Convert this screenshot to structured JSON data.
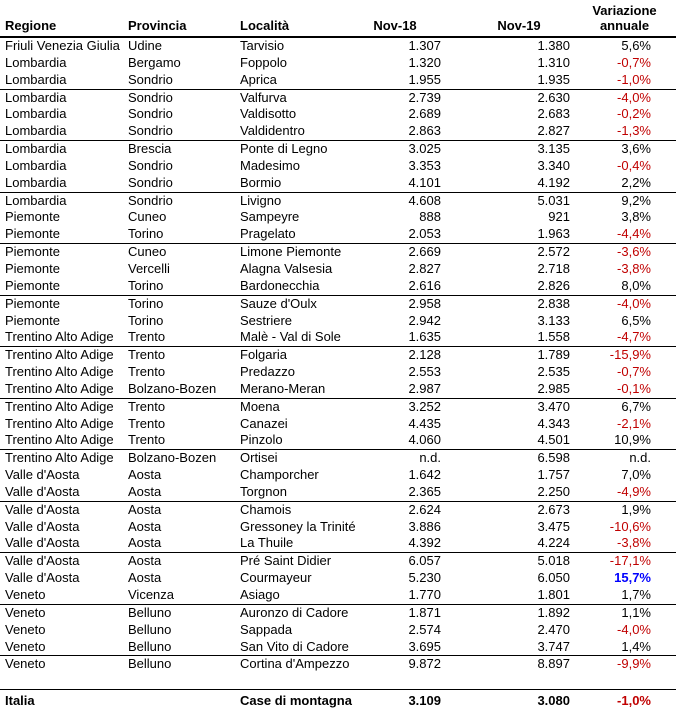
{
  "colors": {
    "negative_pct": "#C00000",
    "highlight_pct": "#0000FF",
    "text": "#000000",
    "border": "#000000"
  },
  "table": {
    "headers": {
      "regione": "Regione",
      "provincia": "Provincia",
      "localita": "Località",
      "nov18": "Nov-18",
      "nov19": "Nov-19",
      "variazione_line1": "Variazione",
      "variazione_line2": "annuale"
    },
    "rows": [
      {
        "regione": "Friuli Venezia Giulia",
        "provincia": "Udine",
        "localita": "Tarvisio",
        "nov18": "1.307",
        "nov19": "1.380",
        "variazione": "5,6%",
        "trend": "positive"
      },
      {
        "regione": "Lombardia",
        "provincia": "Bergamo",
        "localita": "Foppolo",
        "nov18": "1.320",
        "nov19": "1.310",
        "variazione": "-0,7%",
        "trend": "negative"
      },
      {
        "regione": "Lombardia",
        "provincia": "Sondrio",
        "localita": "Aprica",
        "nov18": "1.955",
        "nov19": "1.935",
        "variazione": "-1,0%",
        "trend": "negative"
      },
      {
        "regione": "Lombardia",
        "provincia": "Sondrio",
        "localita": "Valfurva",
        "nov18": "2.739",
        "nov19": "2.630",
        "variazione": "-4,0%",
        "trend": "negative"
      },
      {
        "regione": "Lombardia",
        "provincia": "Sondrio",
        "localita": "Valdisotto",
        "nov18": "2.689",
        "nov19": "2.683",
        "variazione": "-0,2%",
        "trend": "negative"
      },
      {
        "regione": "Lombardia",
        "provincia": "Sondrio",
        "localita": "Valdidentro",
        "nov18": "2.863",
        "nov19": "2.827",
        "variazione": "-1,3%",
        "trend": "negative"
      },
      {
        "regione": "Lombardia",
        "provincia": "Brescia",
        "localita": "Ponte di Legno",
        "nov18": "3.025",
        "nov19": "3.135",
        "variazione": "3,6%",
        "trend": "positive"
      },
      {
        "regione": "Lombardia",
        "provincia": "Sondrio",
        "localita": "Madesimo",
        "nov18": "3.353",
        "nov19": "3.340",
        "variazione": "-0,4%",
        "trend": "negative"
      },
      {
        "regione": "Lombardia",
        "provincia": "Sondrio",
        "localita": "Bormio",
        "nov18": "4.101",
        "nov19": "4.192",
        "variazione": "2,2%",
        "trend": "positive"
      },
      {
        "regione": "Lombardia",
        "provincia": "Sondrio",
        "localita": "Livigno",
        "nov18": "4.608",
        "nov19": "5.031",
        "variazione": "9,2%",
        "trend": "positive"
      },
      {
        "regione": "Piemonte",
        "provincia": "Cuneo",
        "localita": "Sampeyre",
        "nov18": "888",
        "nov19": "921",
        "variazione": "3,8%",
        "trend": "positive"
      },
      {
        "regione": "Piemonte",
        "provincia": "Torino",
        "localita": "Pragelato",
        "nov18": "2.053",
        "nov19": "1.963",
        "variazione": "-4,4%",
        "trend": "negative"
      },
      {
        "regione": "Piemonte",
        "provincia": "Cuneo",
        "localita": "Limone Piemonte",
        "nov18": "2.669",
        "nov19": "2.572",
        "variazione": "-3,6%",
        "trend": "negative"
      },
      {
        "regione": "Piemonte",
        "provincia": "Vercelli",
        "localita": "Alagna Valsesia",
        "nov18": "2.827",
        "nov19": "2.718",
        "variazione": "-3,8%",
        "trend": "negative"
      },
      {
        "regione": "Piemonte",
        "provincia": "Torino",
        "localita": "Bardonecchia",
        "nov18": "2.616",
        "nov19": "2.826",
        "variazione": "8,0%",
        "trend": "positive"
      },
      {
        "regione": "Piemonte",
        "provincia": "Torino",
        "localita": "Sauze d'Oulx",
        "nov18": "2.958",
        "nov19": "2.838",
        "variazione": "-4,0%",
        "trend": "negative"
      },
      {
        "regione": "Piemonte",
        "provincia": "Torino",
        "localita": "Sestriere",
        "nov18": "2.942",
        "nov19": "3.133",
        "variazione": "6,5%",
        "trend": "positive"
      },
      {
        "regione": "Trentino Alto Adige",
        "provincia": "Trento",
        "localita": "Malè - Val di Sole",
        "nov18": "1.635",
        "nov19": "1.558",
        "variazione": "-4,7%",
        "trend": "negative"
      },
      {
        "regione": "Trentino Alto Adige",
        "provincia": "Trento",
        "localita": "Folgaria",
        "nov18": "2.128",
        "nov19": "1.789",
        "variazione": "-15,9%",
        "trend": "negative"
      },
      {
        "regione": "Trentino Alto Adige",
        "provincia": "Trento",
        "localita": "Predazzo",
        "nov18": "2.553",
        "nov19": "2.535",
        "variazione": "-0,7%",
        "trend": "negative"
      },
      {
        "regione": "Trentino Alto Adige",
        "provincia": "Bolzano-Bozen",
        "localita": "Merano-Meran",
        "nov18": "2.987",
        "nov19": "2.985",
        "variazione": "-0,1%",
        "trend": "negative"
      },
      {
        "regione": "Trentino Alto Adige",
        "provincia": "Trento",
        "localita": "Moena",
        "nov18": "3.252",
        "nov19": "3.470",
        "variazione": "6,7%",
        "trend": "positive"
      },
      {
        "regione": "Trentino Alto Adige",
        "provincia": "Trento",
        "localita": "Canazei",
        "nov18": "4.435",
        "nov19": "4.343",
        "variazione": "-2,1%",
        "trend": "negative"
      },
      {
        "regione": "Trentino Alto Adige",
        "provincia": "Trento",
        "localita": "Pinzolo",
        "nov18": "4.060",
        "nov19": "4.501",
        "variazione": "10,9%",
        "trend": "positive"
      },
      {
        "regione": "Trentino Alto Adige",
        "provincia": "Bolzano-Bozen",
        "localita": "Ortisei",
        "nov18": "n.d.",
        "nov19": "6.598",
        "variazione": "n.d.",
        "trend": "positive"
      },
      {
        "regione": "Valle d'Aosta",
        "provincia": "Aosta",
        "localita": "Champorcher",
        "nov18": "1.642",
        "nov19": "1.757",
        "variazione": "7,0%",
        "trend": "positive"
      },
      {
        "regione": "Valle d'Aosta",
        "provincia": "Aosta",
        "localita": "Torgnon",
        "nov18": "2.365",
        "nov19": "2.250",
        "variazione": "-4,9%",
        "trend": "negative"
      },
      {
        "regione": "Valle d'Aosta",
        "provincia": "Aosta",
        "localita": "Chamois",
        "nov18": "2.624",
        "nov19": "2.673",
        "variazione": "1,9%",
        "trend": "positive"
      },
      {
        "regione": "Valle d'Aosta",
        "provincia": "Aosta",
        "localita": "Gressoney la Trinité",
        "nov18": "3.886",
        "nov19": "3.475",
        "variazione": "-10,6%",
        "trend": "negative"
      },
      {
        "regione": "Valle d'Aosta",
        "provincia": "Aosta",
        "localita": "La Thuile",
        "nov18": "4.392",
        "nov19": "4.224",
        "variazione": "-3,8%",
        "trend": "negative"
      },
      {
        "regione": "Valle d'Aosta",
        "provincia": "Aosta",
        "localita": "Pré Saint Didier",
        "nov18": "6.057",
        "nov19": "5.018",
        "variazione": "-17,1%",
        "trend": "negative"
      },
      {
        "regione": "Valle d'Aosta",
        "provincia": "Aosta",
        "localita": "Courmayeur",
        "nov18": "5.230",
        "nov19": "6.050",
        "variazione": "15,7%",
        "trend": "highlight"
      },
      {
        "regione": "Veneto",
        "provincia": "Vicenza",
        "localita": "Asiago",
        "nov18": "1.770",
        "nov19": "1.801",
        "variazione": "1,7%",
        "trend": "positive"
      },
      {
        "regione": "Veneto",
        "provincia": "Belluno",
        "localita": "Auronzo di Cadore",
        "nov18": "1.871",
        "nov19": "1.892",
        "variazione": "1,1%",
        "trend": "positive"
      },
      {
        "regione": "Veneto",
        "provincia": "Belluno",
        "localita": "Sappada",
        "nov18": "2.574",
        "nov19": "2.470",
        "variazione": "-4,0%",
        "trend": "negative"
      },
      {
        "regione": "Veneto",
        "provincia": "Belluno",
        "localita": "San Vito di Cadore",
        "nov18": "3.695",
        "nov19": "3.747",
        "variazione": "1,4%",
        "trend": "positive"
      },
      {
        "regione": "Veneto",
        "provincia": "Belluno",
        "localita": "Cortina d'Ampezzo",
        "nov18": "9.872",
        "nov19": "8.897",
        "variazione": "-9,9%",
        "trend": "negative"
      }
    ],
    "footer": {
      "regione": "Italia",
      "provincia": "",
      "localita": "Case di montagna",
      "nov18": "3.109",
      "nov19": "3.080",
      "variazione": "-1,0%",
      "trend": "negative"
    }
  }
}
